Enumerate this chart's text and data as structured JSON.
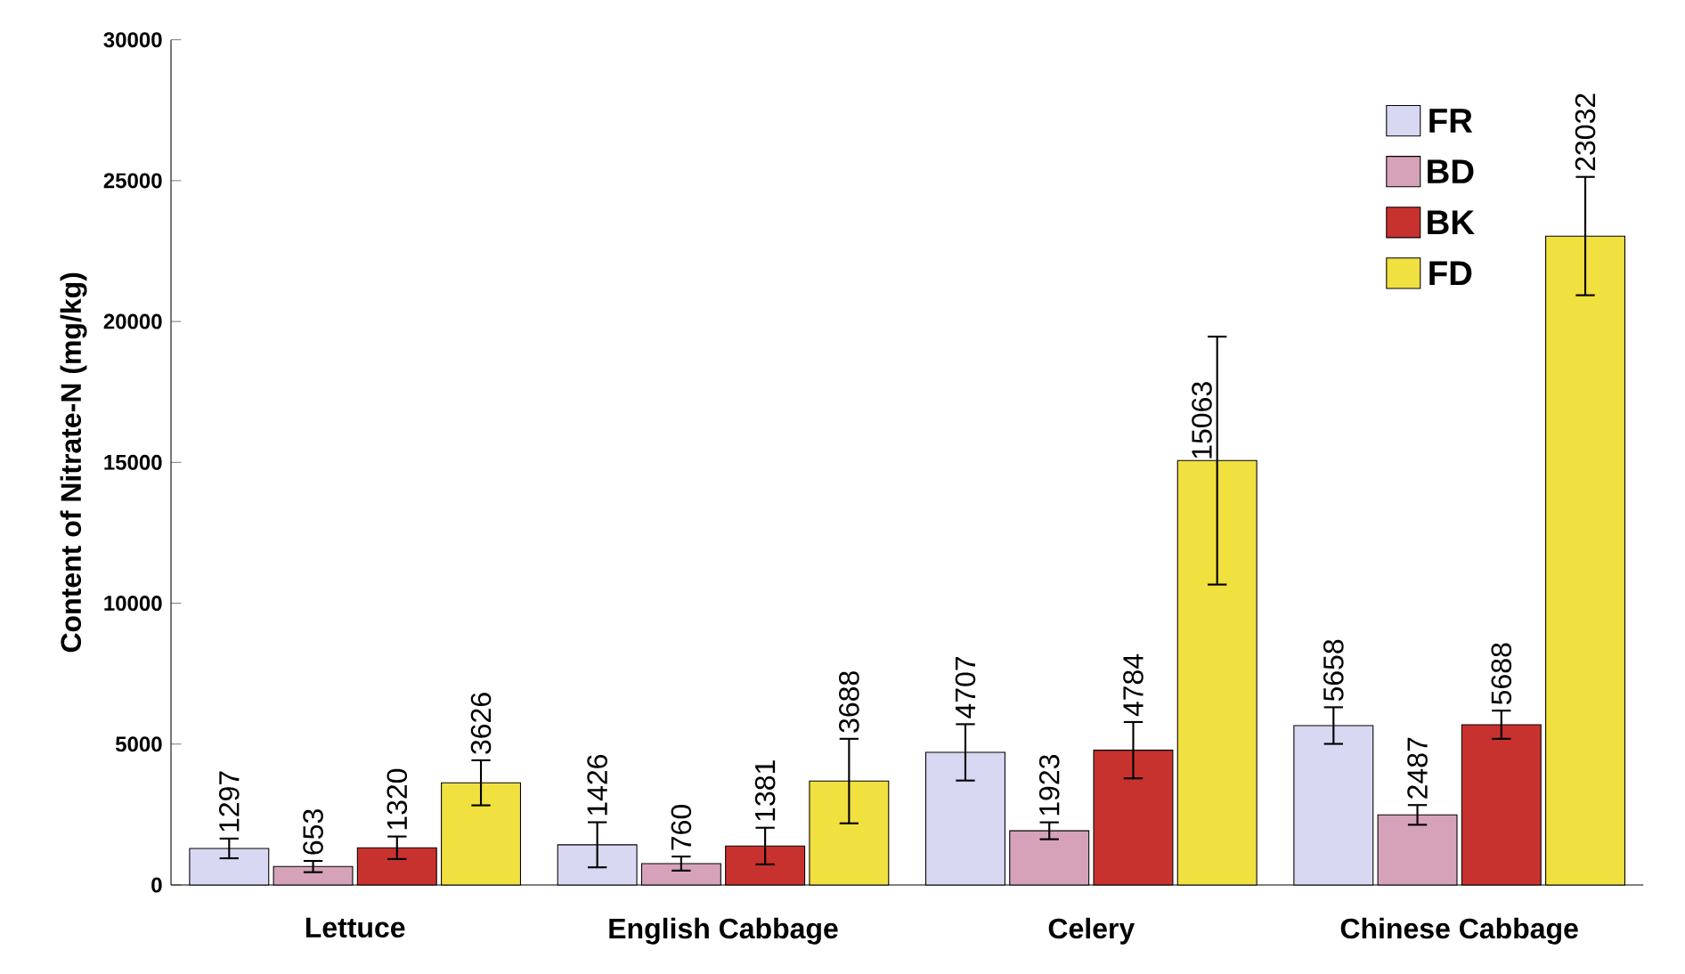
{
  "chart_data": {
    "type": "bar",
    "ylabel": "Content of Nitrate-N (mg/kg)",
    "categories": [
      "Lettuce",
      "English Cabbage",
      "Celery",
      "Chinese Cabbage"
    ],
    "series": [
      {
        "name": "FR",
        "color": "#d8d8f2",
        "values": [
          1297,
          1426,
          4707,
          5658
        ],
        "errors": [
          350,
          800,
          1000,
          650
        ]
      },
      {
        "name": "BD",
        "color": "#d6a2ba",
        "values": [
          653,
          760,
          1923,
          2487
        ],
        "errors": [
          200,
          250,
          300,
          350
        ]
      },
      {
        "name": "BK",
        "color": "#c8322e",
        "values": [
          1320,
          1381,
          4784,
          5688
        ],
        "errors": [
          400,
          650,
          1000,
          500
        ]
      },
      {
        "name": "FD",
        "color": "#f0e040",
        "values": [
          3626,
          3688,
          15063,
          23032
        ],
        "errors": [
          800,
          1500,
          4400,
          2100
        ]
      }
    ],
    "ylim": [
      0,
      30000
    ],
    "yticks": [
      0,
      5000,
      10000,
      15000,
      20000,
      25000,
      30000
    ],
    "data_labels": true,
    "legend": "top right",
    "grid": false
  }
}
